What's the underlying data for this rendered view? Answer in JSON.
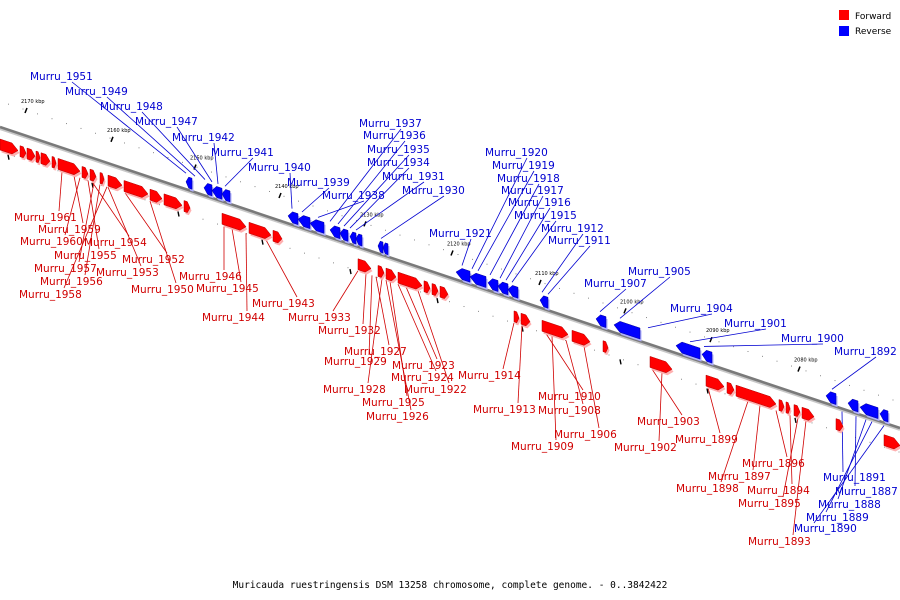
{
  "legend": {
    "items": [
      {
        "label": "Forward",
        "color": "#ff0000"
      },
      {
        "label": "Reverse",
        "color": "#0000ff"
      }
    ]
  },
  "colors": {
    "forward": "#ff0000",
    "forward_dark": "#b00000",
    "forward_label": "#d00000",
    "reverse": "#0000ff",
    "reverse_dark": "#00009a",
    "reverse_label": "#0000d0",
    "backbone": "#7a7a7a"
  },
  "caption": "Muricauda ruestringensis DSM 13258 chromosome, complete genome. - 0..3842422",
  "ticks": [
    "2170 kbp",
    "2160 kbp",
    "2150 kbp",
    "2140 kbp",
    "2130 kbp",
    "2120 kbp",
    "2110 kbp",
    "2100 kbp",
    "2090 kbp",
    "2080 kbp"
  ],
  "reverse_labels": [
    "Murru_1951",
    "Murru_1949",
    "Murru_1948",
    "Murru_1947",
    "Murru_1942",
    "Murru_1941",
    "Murru_1940",
    "Murru_1939",
    "Murru_1938",
    "Murru_1937",
    "Murru_1936",
    "Murru_1935",
    "Murru_1934",
    "Murru_1931",
    "Murru_1930",
    "Murru_1921",
    "Murru_1920",
    "Murru_1919",
    "Murru_1918",
    "Murru_1917",
    "Murru_1916",
    "Murru_1915",
    "Murru_1912",
    "Murru_1911",
    "Murru_1907",
    "Murru_1905",
    "Murru_1904",
    "Murru_1901",
    "Murru_1900",
    "Murru_1892",
    "Murru_1891",
    "Murru_1887",
    "Murru_1888",
    "Murru_1889",
    "Murru_1890"
  ],
  "forward_labels": [
    "Murru_1961",
    "Murru_1959",
    "Murru_1960",
    "Murru_1954",
    "Murru_1955",
    "Murru_1952",
    "Murru_1957",
    "Murru_1953",
    "Murru_1956",
    "Murru_1950",
    "Murru_1958",
    "Murru_1946",
    "Murru_1945",
    "Murru_1943",
    "Murru_1944",
    "Murru_1933",
    "Murru_1932",
    "Murru_1927",
    "Murru_1929",
    "Murru_1923",
    "Murru_1924",
    "Murru_1928",
    "Murru_1922",
    "Murru_1925",
    "Murru_1926",
    "Murru_1914",
    "Murru_1913",
    "Murru_1910",
    "Murru_1908",
    "Murru_1906",
    "Murru_1909",
    "Murru_1903",
    "Murru_1902",
    "Murru_1899",
    "Murru_1896",
    "Murru_1897",
    "Murru_1898",
    "Murru_1894",
    "Murru_1895",
    "Murru_1893"
  ]
}
